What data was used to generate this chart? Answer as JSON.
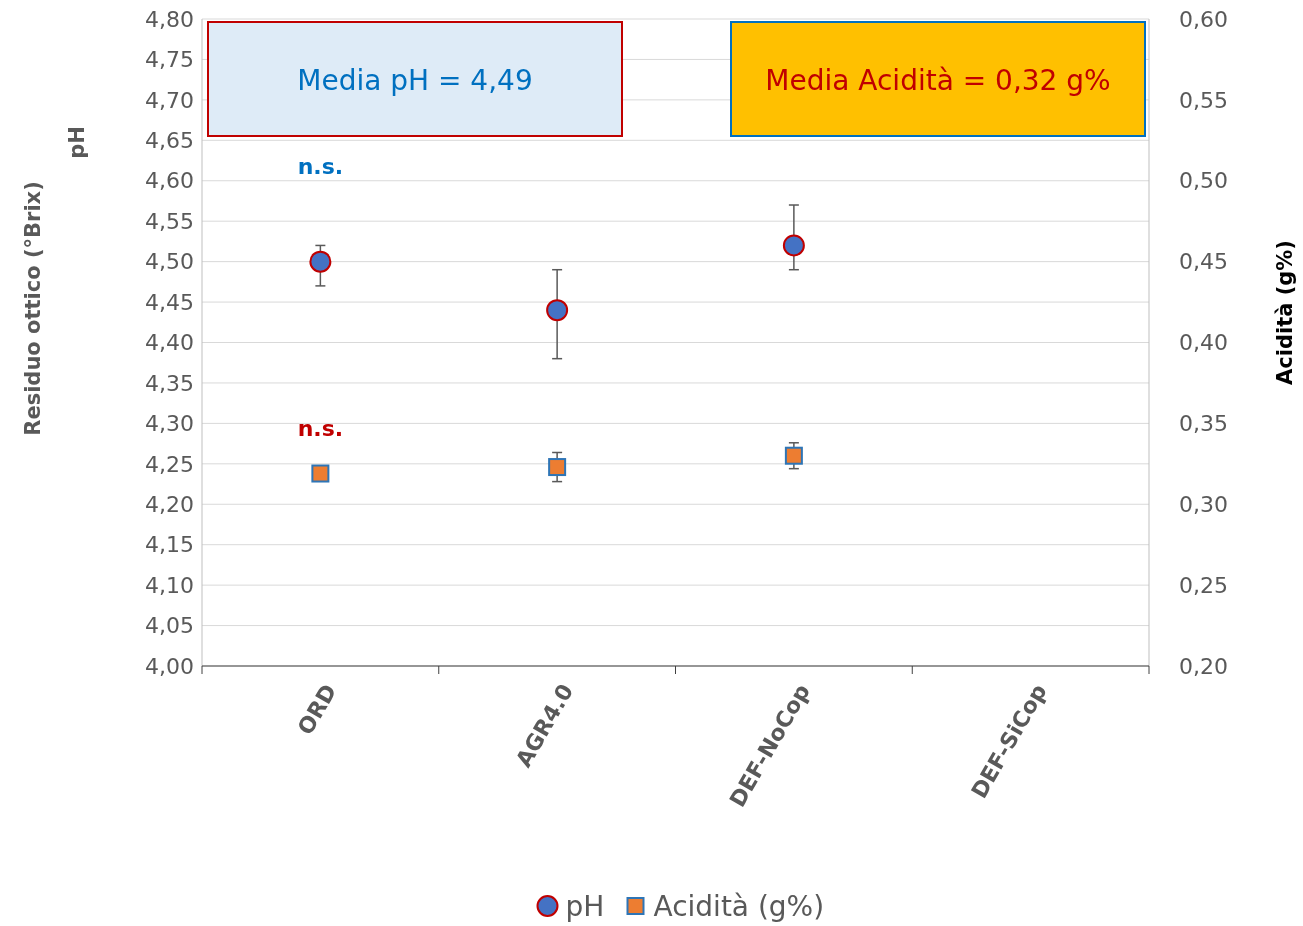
{
  "chart_data": {
    "type": "scatter",
    "categories": [
      "ORD",
      "AGR4.0",
      "DEF-NoCop",
      "DEF-SiCop"
    ],
    "ylabel": "Residuo ottico (°Brix)\npH",
    "y2label": "Acidità (g%)",
    "ylim": [
      4.0,
      4.8
    ],
    "yticks": [
      {
        "value": 4.0,
        "label": "4,00"
      },
      {
        "value": 4.05,
        "label": "4,05"
      },
      {
        "value": 4.1,
        "label": "4,10"
      },
      {
        "value": 4.15,
        "label": "4,15"
      },
      {
        "value": 4.2,
        "label": "4,20"
      },
      {
        "value": 4.25,
        "label": "4,25"
      },
      {
        "value": 4.3,
        "label": "4,30"
      },
      {
        "value": 4.35,
        "label": "4,35"
      },
      {
        "value": 4.4,
        "label": "4,40"
      },
      {
        "value": 4.45,
        "label": "4,45"
      },
      {
        "value": 4.5,
        "label": "4,50"
      },
      {
        "value": 4.55,
        "label": "4,55"
      },
      {
        "value": 4.6,
        "label": "4,60"
      },
      {
        "value": 4.65,
        "label": "4,65"
      },
      {
        "value": 4.7,
        "label": "4,70"
      },
      {
        "value": 4.75,
        "label": "4,75"
      },
      {
        "value": 4.8,
        "label": "4,80"
      }
    ],
    "y2lim": [
      0.2,
      0.6
    ],
    "y2ticks": [
      {
        "value": 0.2,
        "label": "0,20"
      },
      {
        "value": 0.25,
        "label": "0,25"
      },
      {
        "value": 0.3,
        "label": "0,30"
      },
      {
        "value": 0.35,
        "label": "0,35"
      },
      {
        "value": 0.4,
        "label": "0,40"
      },
      {
        "value": 0.45,
        "label": "0,45"
      },
      {
        "value": 0.5,
        "label": "0,50"
      },
      {
        "value": 0.55,
        "label": "0,55"
      },
      {
        "value": 0.6,
        "label": "0,60"
      }
    ],
    "grid": "y",
    "legend": "bottom",
    "series": [
      {
        "name": "pH",
        "color": "#4472c4",
        "marker": "circle",
        "values": [
          4.5,
          4.44,
          4.52,
          null
        ],
        "errors": [
          [
            4.47,
            4.52
          ],
          [
            4.38,
            4.49
          ],
          [
            4.49,
            4.57
          ],
          null
        ]
      },
      {
        "name": "Acidità (g%)",
        "color": "#ed7d31",
        "marker": "square",
        "axis": "y2",
        "values": [
          0.319,
          0.323,
          0.33,
          null
        ],
        "errors": [
          [
            0.318,
            0.322
          ],
          [
            0.314,
            0.332
          ],
          [
            0.322,
            0.338
          ],
          null
        ]
      }
    ],
    "annotations": [
      "Media pH = 4,49",
      "Media Acidità = 0,32 g%",
      "n.s.",
      "n.s."
    ]
  }
}
